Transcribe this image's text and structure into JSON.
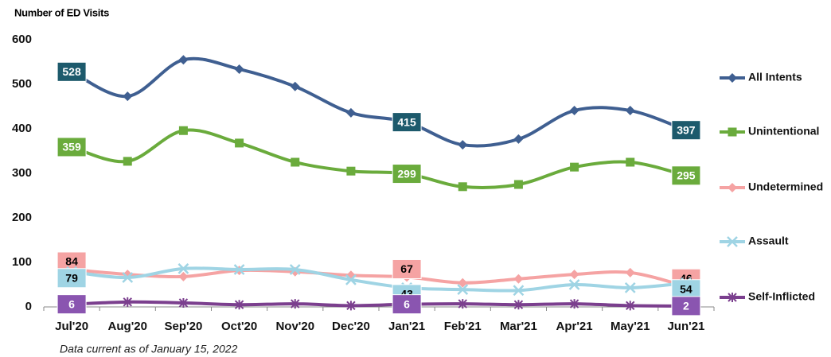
{
  "chart_data": {
    "type": "line",
    "y_axis_label": "Number of ED Visits",
    "note": "Data current as of January 15, 2022",
    "categories": [
      "Jul'20",
      "Aug'20",
      "Sep'20",
      "Oct'20",
      "Nov'20",
      "Dec'20",
      "Jan'21",
      "Feb'21",
      "Mar'21",
      "Apr'21",
      "May'21",
      "Jun'21"
    ],
    "ylim": [
      0,
      600
    ],
    "yticks": [
      0,
      100,
      200,
      300,
      400,
      500,
      600
    ],
    "series": [
      {
        "name": "All Intents",
        "color": "#3f5f91",
        "marker": "diamond",
        "label_fill": "#1d5a6c",
        "label_text": "#ffffff",
        "values": [
          528,
          473,
          555,
          534,
          495,
          436,
          415,
          364,
          377,
          441,
          441,
          397
        ],
        "value_labels": [
          528,
          null,
          null,
          null,
          null,
          null,
          415,
          null,
          null,
          null,
          null,
          397
        ]
      },
      {
        "name": "Unintentional",
        "color": "#6aab3c",
        "marker": "square",
        "label_fill": "#6aab3c",
        "label_text": "#ffffff",
        "values": [
          359,
          327,
          396,
          368,
          325,
          305,
          299,
          270,
          275,
          314,
          325,
          295
        ],
        "value_labels": [
          359,
          null,
          null,
          null,
          null,
          null,
          299,
          null,
          null,
          null,
          null,
          295
        ]
      },
      {
        "name": "Undetermined",
        "color": "#f5a3a3",
        "marker": "diamond",
        "label_fill": "#f5a3a3",
        "label_text": "#000000",
        "values": [
          84,
          73,
          68,
          82,
          79,
          71,
          67,
          54,
          63,
          73,
          77,
          46
        ],
        "value_labels": [
          84,
          null,
          null,
          null,
          null,
          null,
          67,
          null,
          null,
          null,
          null,
          46
        ]
      },
      {
        "name": "Assault",
        "color": "#9fd4e4",
        "marker": "x",
        "label_fill": "#9fd4e4",
        "label_text": "#000000",
        "values": [
          79,
          66,
          86,
          84,
          84,
          61,
          43,
          39,
          37,
          50,
          43,
          54
        ],
        "value_labels": [
          79,
          null,
          null,
          null,
          null,
          null,
          43,
          null,
          null,
          null,
          null,
          54
        ]
      },
      {
        "name": "Self-Inflicted",
        "color": "#7b3f8e",
        "marker": "star",
        "label_fill": "#8a55b0",
        "label_text": "#ffffff",
        "values": [
          6,
          11,
          9,
          5,
          7,
          3,
          6,
          7,
          5,
          7,
          3,
          2
        ],
        "value_labels": [
          6,
          null,
          null,
          null,
          null,
          null,
          6,
          null,
          null,
          null,
          null,
          2
        ]
      }
    ]
  }
}
